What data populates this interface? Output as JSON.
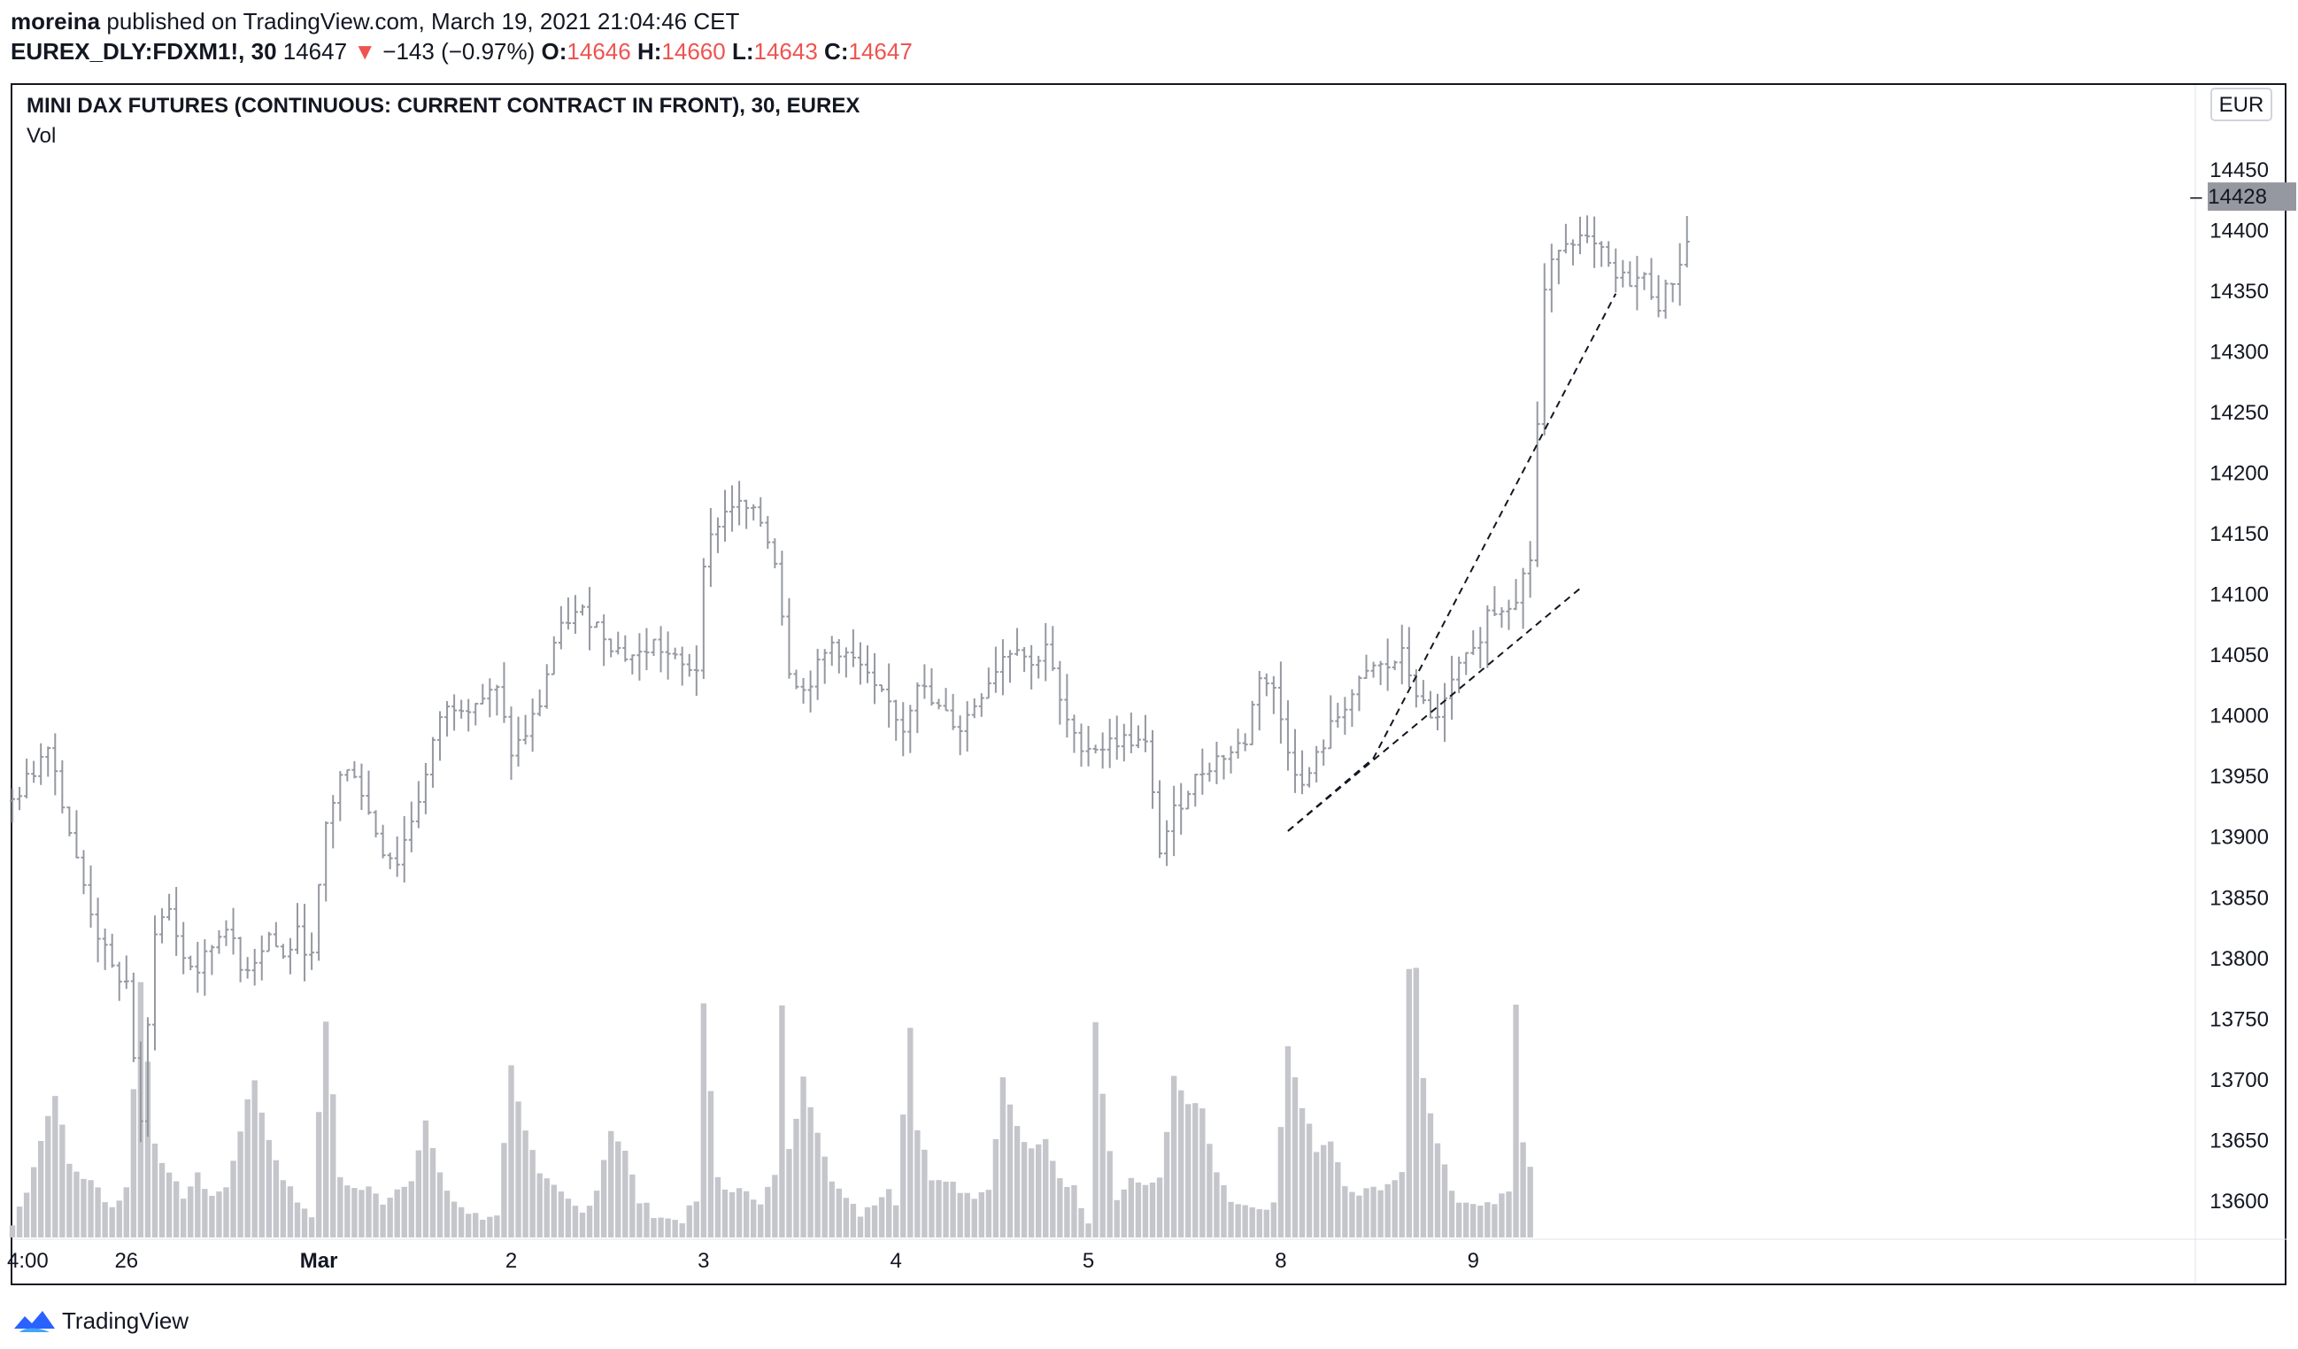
{
  "header": {
    "author": "moreina",
    "published": "published on TradingView.com, March 19, 2021 21:04:46 CET",
    "symbol": "EUREX_DLY:FDXM1!, 30",
    "last": "14647",
    "change_arrow": "▼",
    "change": "−143 (−0.97%)",
    "o_label": "O:",
    "o_value": "14646",
    "h_label": "H:",
    "h_value": "14660",
    "l_label": "L:",
    "l_value": "14643",
    "c_label": "C:",
    "c_value": "14647"
  },
  "legend": {
    "title": "MINI DAX FUTURES (CONTINUOUS: CURRENT CONTRACT IN FRONT), 30, EUREX",
    "volume": "Vol"
  },
  "price_axis": {
    "currency": "EUR",
    "last_price_label": "14428",
    "ticks": [
      "14500",
      "14450",
      "14400",
      "14350",
      "14300",
      "14250",
      "14200",
      "14150",
      "14100",
      "14050",
      "14000",
      "13950",
      "13900",
      "13850",
      "13800",
      "13750",
      "13700",
      "13650",
      "13600"
    ]
  },
  "time_axis": {
    "labels": [
      "4:00",
      "26",
      "Mar",
      "2",
      "3",
      "4",
      "5",
      "8",
      "9"
    ]
  },
  "footer": {
    "brand": "TradingView"
  },
  "colors": {
    "bars": "#9598a1",
    "volume": "#c5c6cc",
    "down": "#ef5350",
    "price_tag": "#9598a1"
  },
  "chart_data": {
    "type": "bar",
    "subtype": "ohlc-with-volume",
    "title": "MINI DAX FUTURES (CONTINUOUS: CURRENT CONTRACT IN FRONT), 30, EUREX",
    "currency": "EUR",
    "ylim": [
      13570,
      14520
    ],
    "day_labels": [
      "4:00",
      "26",
      "Mar",
      "2",
      "3",
      "4",
      "5",
      "8",
      "9"
    ],
    "day_label_bar_index": [
      0,
      16,
      43,
      70,
      97,
      124,
      151,
      178,
      205
    ],
    "last_price": 14428,
    "price_path": [
      [
        0,
        13930
      ],
      [
        3,
        13955
      ],
      [
        5,
        13980
      ],
      [
        7,
        13930
      ],
      [
        9,
        13880
      ],
      [
        12,
        13820
      ],
      [
        14,
        13790
      ],
      [
        16,
        13780
      ],
      [
        18,
        13660
      ],
      [
        20,
        13825
      ],
      [
        22,
        13840
      ],
      [
        24,
        13800
      ],
      [
        26,
        13790
      ],
      [
        28,
        13810
      ],
      [
        30,
        13830
      ],
      [
        32,
        13790
      ],
      [
        34,
        13800
      ],
      [
        36,
        13820
      ],
      [
        38,
        13800
      ],
      [
        40,
        13820
      ],
      [
        42,
        13800
      ],
      [
        44,
        13910
      ],
      [
        46,
        13950
      ],
      [
        48,
        13955
      ],
      [
        50,
        13920
      ],
      [
        52,
        13890
      ],
      [
        54,
        13880
      ],
      [
        56,
        13915
      ],
      [
        58,
        13950
      ],
      [
        60,
        14000
      ],
      [
        62,
        14010
      ],
      [
        64,
        14010
      ],
      [
        66,
        14015
      ],
      [
        68,
        14020
      ],
      [
        70,
        13970
      ],
      [
        72,
        13985
      ],
      [
        74,
        14010
      ],
      [
        76,
        14060
      ],
      [
        78,
        14080
      ],
      [
        80,
        14085
      ],
      [
        82,
        14075
      ],
      [
        84,
        14060
      ],
      [
        86,
        14050
      ],
      [
        88,
        14050
      ],
      [
        90,
        14060
      ],
      [
        92,
        14050
      ],
      [
        94,
        14040
      ],
      [
        96,
        14040
      ],
      [
        97,
        14130
      ],
      [
        99,
        14160
      ],
      [
        101,
        14175
      ],
      [
        103,
        14170
      ],
      [
        105,
        14160
      ],
      [
        107,
        14130
      ],
      [
        109,
        14040
      ],
      [
        111,
        14020
      ],
      [
        113,
        14040
      ],
      [
        115,
        14060
      ],
      [
        117,
        14050
      ],
      [
        119,
        14040
      ],
      [
        121,
        14020
      ],
      [
        123,
        14010
      ],
      [
        125,
        13990
      ],
      [
        127,
        14030
      ],
      [
        129,
        14010
      ],
      [
        131,
        14000
      ],
      [
        133,
        13990
      ],
      [
        135,
        14010
      ],
      [
        137,
        14030
      ],
      [
        139,
        14050
      ],
      [
        141,
        14060
      ],
      [
        143,
        14040
      ],
      [
        145,
        14060
      ],
      [
        147,
        14010
      ],
      [
        149,
        13980
      ],
      [
        151,
        13975
      ],
      [
        153,
        13975
      ],
      [
        155,
        13980
      ],
      [
        157,
        13980
      ],
      [
        159,
        13975
      ],
      [
        161,
        13890
      ],
      [
        163,
        13920
      ],
      [
        165,
        13940
      ],
      [
        167,
        13955
      ],
      [
        169,
        13965
      ],
      [
        171,
        13970
      ],
      [
        173,
        13980
      ],
      [
        175,
        14035
      ],
      [
        177,
        14020
      ],
      [
        179,
        13975
      ],
      [
        181,
        13940
      ],
      [
        183,
        13965
      ],
      [
        185,
        13990
      ],
      [
        187,
        14010
      ],
      [
        189,
        14025
      ],
      [
        191,
        14040
      ],
      [
        193,
        14040
      ],
      [
        195,
        14050
      ],
      [
        197,
        14020
      ],
      [
        199,
        13995
      ],
      [
        201,
        14010
      ],
      [
        203,
        14040
      ],
      [
        205,
        14050
      ],
      [
        207,
        14085
      ],
      [
        209,
        14090
      ],
      [
        211,
        14100
      ],
      [
        213,
        14130
      ],
      [
        214,
        14240
      ],
      [
        215,
        14350
      ],
      [
        217,
        14390
      ],
      [
        219,
        14395
      ],
      [
        221,
        14390
      ],
      [
        223,
        14380
      ],
      [
        225,
        14360
      ],
      [
        227,
        14360
      ],
      [
        229,
        14360
      ],
      [
        231,
        14340
      ],
      [
        233,
        14360
      ],
      [
        235,
        14390
      ]
    ],
    "volume_path": [
      [
        0,
        13580
      ],
      [
        2,
        13610
      ],
      [
        4,
        13650
      ],
      [
        6,
        13690
      ],
      [
        8,
        13630
      ],
      [
        10,
        13620
      ],
      [
        12,
        13610
      ],
      [
        14,
        13595
      ],
      [
        16,
        13610
      ],
      [
        18,
        13780
      ],
      [
        20,
        13650
      ],
      [
        22,
        13620
      ],
      [
        24,
        13605
      ],
      [
        26,
        13620
      ],
      [
        28,
        13605
      ],
      [
        30,
        13610
      ],
      [
        32,
        13660
      ],
      [
        34,
        13700
      ],
      [
        36,
        13650
      ],
      [
        38,
        13620
      ],
      [
        40,
        13600
      ],
      [
        42,
        13590
      ],
      [
        44,
        13750
      ],
      [
        46,
        13620
      ],
      [
        48,
        13610
      ],
      [
        50,
        13610
      ],
      [
        52,
        13600
      ],
      [
        54,
        13610
      ],
      [
        56,
        13620
      ],
      [
        58,
        13665
      ],
      [
        60,
        13620
      ],
      [
        62,
        13600
      ],
      [
        64,
        13590
      ],
      [
        66,
        13585
      ],
      [
        68,
        13590
      ],
      [
        70,
        13710
      ],
      [
        72,
        13660
      ],
      [
        74,
        13620
      ],
      [
        76,
        13610
      ],
      [
        78,
        13600
      ],
      [
        80,
        13590
      ],
      [
        82,
        13610
      ],
      [
        84,
        13660
      ],
      [
        86,
        13640
      ],
      [
        88,
        13600
      ],
      [
        90,
        13590
      ],
      [
        92,
        13585
      ],
      [
        94,
        13585
      ],
      [
        96,
        13600
      ],
      [
        97,
        13760
      ],
      [
        99,
        13620
      ],
      [
        101,
        13605
      ],
      [
        103,
        13610
      ],
      [
        105,
        13600
      ],
      [
        107,
        13620
      ],
      [
        108,
        13760
      ],
      [
        109,
        13640
      ],
      [
        111,
        13700
      ],
      [
        113,
        13660
      ],
      [
        115,
        13620
      ],
      [
        117,
        13600
      ],
      [
        119,
        13590
      ],
      [
        121,
        13600
      ],
      [
        123,
        13610
      ],
      [
        124,
        13600
      ],
      [
        126,
        13745
      ],
      [
        127,
        13660
      ],
      [
        129,
        13620
      ],
      [
        131,
        13620
      ],
      [
        133,
        13610
      ],
      [
        135,
        13605
      ],
      [
        137,
        13610
      ],
      [
        139,
        13700
      ],
      [
        141,
        13660
      ],
      [
        143,
        13640
      ],
      [
        145,
        13650
      ],
      [
        147,
        13620
      ],
      [
        149,
        13610
      ],
      [
        151,
        13585
      ],
      [
        152,
        13750
      ],
      [
        153,
        13690
      ],
      [
        155,
        13600
      ],
      [
        157,
        13620
      ],
      [
        159,
        13610
      ],
      [
        161,
        13620
      ],
      [
        163,
        13700
      ],
      [
        165,
        13680
      ],
      [
        167,
        13675
      ],
      [
        169,
        13620
      ],
      [
        171,
        13600
      ],
      [
        173,
        13595
      ],
      [
        175,
        13590
      ],
      [
        177,
        13595
      ],
      [
        179,
        13725
      ],
      [
        181,
        13680
      ],
      [
        183,
        13640
      ],
      [
        185,
        13650
      ],
      [
        187,
        13610
      ],
      [
        189,
        13605
      ],
      [
        191,
        13610
      ],
      [
        193,
        13615
      ],
      [
        195,
        13620
      ],
      [
        196,
        13790
      ],
      [
        197,
        13795
      ],
      [
        198,
        13700
      ],
      [
        200,
        13650
      ],
      [
        202,
        13610
      ],
      [
        204,
        13595
      ],
      [
        206,
        13600
      ],
      [
        208,
        13600
      ],
      [
        210,
        13610
      ],
      [
        211,
        13760
      ],
      [
        212,
        13650
      ],
      [
        213,
        13625
      ]
    ],
    "trendlines": [
      {
        "style": "dashed",
        "from": [
          179,
          13905
        ],
        "to": [
          220,
          14105
        ]
      },
      {
        "style": "dashed",
        "from": [
          179,
          13905
        ],
        "to": [
          191,
          13965
        ],
        "continue_to": [
          225,
          14348
        ]
      }
    ]
  }
}
